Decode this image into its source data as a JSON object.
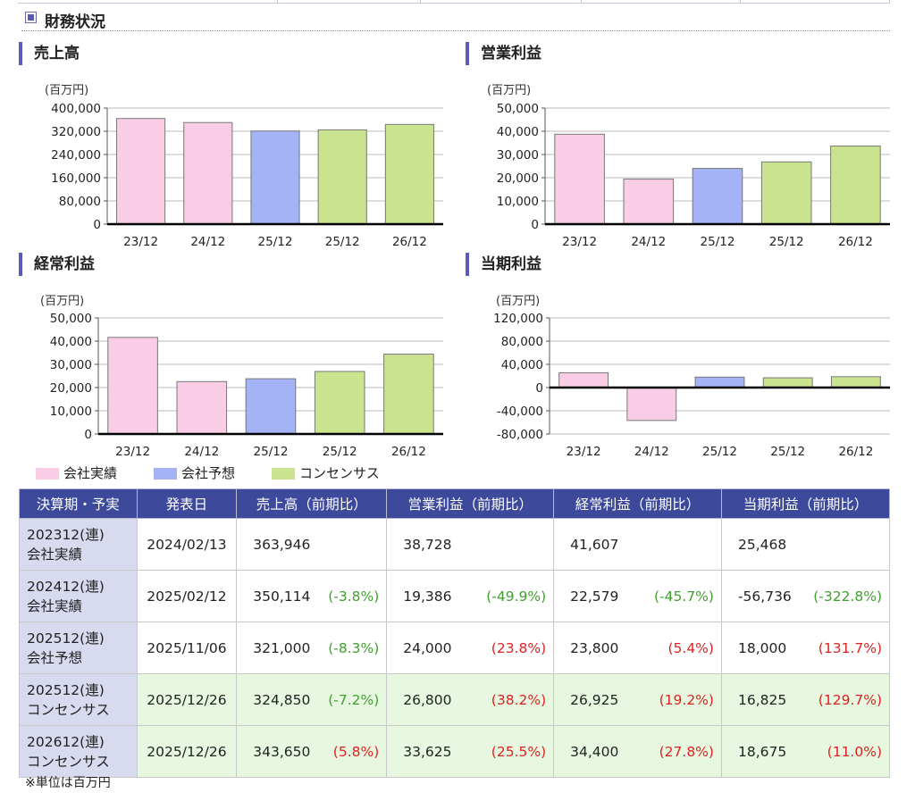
{
  "section": {
    "title": "財務状況",
    "icon": "square-bullet-icon"
  },
  "colors": {
    "actual": "#f9cde6",
    "forecast": "#a3b3f5",
    "consensus": "#c9e38f",
    "header_bg": "#3d4a9c",
    "accent": "#5a5ab8",
    "negative_change": "#3fa02c",
    "positive_change": "#e02020"
  },
  "legend": [
    {
      "label": "会社実績",
      "kind": "actual"
    },
    {
      "label": "会社予想",
      "kind": "forecast"
    },
    {
      "label": "コンセンサス",
      "kind": "consensus"
    }
  ],
  "chart_data": [
    {
      "type": "bar",
      "title": "売上高",
      "unit": "(百万円)",
      "categories": [
        "23/12",
        "24/12",
        "25/12",
        "25/12",
        "26/12"
      ],
      "kinds": [
        "actual",
        "actual",
        "forecast",
        "consensus",
        "consensus"
      ],
      "values": [
        363946,
        350114,
        321000,
        324850,
        343650
      ],
      "ylim": [
        0,
        400000
      ],
      "yticks": [
        0,
        80000,
        160000,
        240000,
        320000,
        400000
      ],
      "ytick_labels": [
        "0",
        "80,000",
        "160,000",
        "240,000",
        "320,000",
        "400,000"
      ],
      "grid": true
    },
    {
      "type": "bar",
      "title": "営業利益",
      "unit": "(百万円)",
      "categories": [
        "23/12",
        "24/12",
        "25/12",
        "25/12",
        "26/12"
      ],
      "kinds": [
        "actual",
        "actual",
        "forecast",
        "consensus",
        "consensus"
      ],
      "values": [
        38728,
        19386,
        24000,
        26800,
        33625
      ],
      "ylim": [
        0,
        50000
      ],
      "yticks": [
        0,
        10000,
        20000,
        30000,
        40000,
        50000
      ],
      "ytick_labels": [
        "0",
        "10,000",
        "20,000",
        "30,000",
        "40,000",
        "50,000"
      ],
      "grid": true
    },
    {
      "type": "bar",
      "title": "経常利益",
      "unit": "(百万円)",
      "categories": [
        "23/12",
        "24/12",
        "25/12",
        "25/12",
        "26/12"
      ],
      "kinds": [
        "actual",
        "actual",
        "forecast",
        "consensus",
        "consensus"
      ],
      "values": [
        41607,
        22579,
        23800,
        26925,
        34400
      ],
      "ylim": [
        0,
        50000
      ],
      "yticks": [
        0,
        10000,
        20000,
        30000,
        40000,
        50000
      ],
      "ytick_labels": [
        "0",
        "10,000",
        "20,000",
        "30,000",
        "40,000",
        "50,000"
      ],
      "grid": true
    },
    {
      "type": "bar",
      "title": "当期利益",
      "unit": "(百万円)",
      "categories": [
        "23/12",
        "24/12",
        "25/12",
        "25/12",
        "26/12"
      ],
      "kinds": [
        "actual",
        "actual",
        "forecast",
        "consensus",
        "consensus"
      ],
      "values": [
        25468,
        -56736,
        18000,
        16825,
        18675
      ],
      "ylim": [
        -80000,
        120000
      ],
      "yticks": [
        -80000,
        -40000,
        0,
        40000,
        80000,
        120000
      ],
      "ytick_labels": [
        "-80,000",
        "-40,000",
        "0",
        "40,000",
        "80,000",
        "120,000"
      ],
      "grid": true
    }
  ],
  "table": {
    "headers": [
      "決算期・予実",
      "発表日",
      "売上高（前期比）",
      "営業利益（前期比）",
      "経常利益（前期比）",
      "当期利益（前期比）"
    ],
    "rows": [
      {
        "period": "202312(連)",
        "kind": "会社実績",
        "date": "2024/02/13",
        "sales": "363,946",
        "sales_chg": "",
        "op": "38,728",
        "op_chg": "",
        "ord": "41,607",
        "ord_chg": "",
        "net": "25,468",
        "net_chg": ""
      },
      {
        "period": "202412(連)",
        "kind": "会社実績",
        "date": "2025/02/12",
        "sales": "350,114",
        "sales_chg": "(-3.8%)",
        "op": "19,386",
        "op_chg": "(-49.9%)",
        "ord": "22,579",
        "ord_chg": "(-45.7%)",
        "net": "-56,736",
        "net_chg": "(-322.8%)"
      },
      {
        "period": "202512(連)",
        "kind": "会社予想",
        "date": "2025/11/06",
        "sales": "321,000",
        "sales_chg": "(-8.3%)",
        "op": "24,000",
        "op_chg": "(23.8%)",
        "ord": "23,800",
        "ord_chg": "(5.4%)",
        "net": "18,000",
        "net_chg": "(131.7%)"
      },
      {
        "period": "202512(連)",
        "kind": "コンセンサス",
        "date": "2025/12/26",
        "sales": "324,850",
        "sales_chg": "(-7.2%)",
        "op": "26,800",
        "op_chg": "(38.2%)",
        "ord": "26,925",
        "ord_chg": "(19.2%)",
        "net": "16,825",
        "net_chg": "(129.7%)"
      },
      {
        "period": "202612(連)",
        "kind": "コンセンサス",
        "date": "2025/12/26",
        "sales": "343,650",
        "sales_chg": "(5.8%)",
        "op": "33,625",
        "op_chg": "(25.5%)",
        "ord": "34,400",
        "ord_chg": "(27.8%)",
        "net": "18,675",
        "net_chg": "(11.0%)"
      }
    ]
  },
  "footnote": "※単位は百万円"
}
